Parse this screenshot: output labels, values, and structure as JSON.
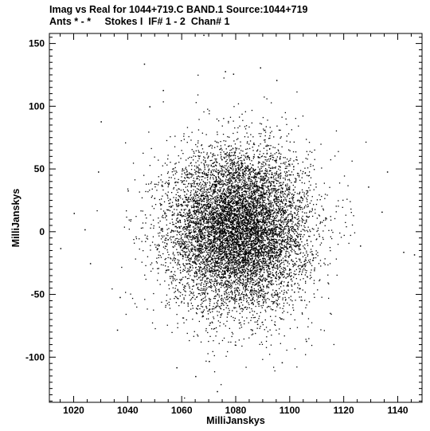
{
  "header": {
    "title_line1": "Imag vs Real for 1044+719.C BAND.1   Source:1044+719",
    "title_line2": "Ants * - *     Stokes I  IF# 1 - 2  Chan# 1"
  },
  "chart_data": {
    "type": "scatter",
    "title": "Imag vs Real for 1044+719.C BAND.1   Source:1044+719",
    "subtitle": "Ants * - *     Stokes I  IF# 1 - 2  Chan# 1",
    "xlabel": "MilliJanskys",
    "ylabel": "MilliJanskys",
    "xlim": [
      1011,
      1149
    ],
    "ylim": [
      -136,
      158
    ],
    "xticks": [
      1020,
      1040,
      1060,
      1080,
      1100,
      1120,
      1140
    ],
    "yticks": [
      -100,
      -50,
      0,
      50,
      100,
      150
    ],
    "grid": false,
    "distribution": {
      "center_x": 1081,
      "center_y": 2,
      "std_x": 13,
      "std_y": 32,
      "n_points": 9000
    },
    "points": [
      {
        "x": 1015,
        "y": -13
      },
      {
        "x": 1020,
        "y": 15
      },
      {
        "x": 1024,
        "y": 2
      },
      {
        "x": 1026,
        "y": -25
      },
      {
        "x": 1029,
        "y": 48
      },
      {
        "x": 1030,
        "y": 88
      },
      {
        "x": 1036,
        "y": -78
      },
      {
        "x": 1037,
        "y": -52
      },
      {
        "x": 1040,
        "y": 33
      },
      {
        "x": 1046,
        "y": 134
      },
      {
        "x": 1048,
        "y": 100
      },
      {
        "x": 1053,
        "y": 113
      },
      {
        "x": 1058,
        "y": -108
      },
      {
        "x": 1065,
        "y": -115
      },
      {
        "x": 1068,
        "y": 157
      },
      {
        "x": 1070,
        "y": -103
      },
      {
        "x": 1073,
        "y": -127
      },
      {
        "x": 1076,
        "y": 128
      },
      {
        "x": 1079,
        "y": 126
      },
      {
        "x": 1089,
        "y": 131
      },
      {
        "x": 1095,
        "y": 121
      },
      {
        "x": 1097,
        "y": -104
      },
      {
        "x": 1106,
        "y": -87
      },
      {
        "x": 1126,
        "y": -11
      },
      {
        "x": 1129,
        "y": 36
      },
      {
        "x": 1134,
        "y": 16
      },
      {
        "x": 1136,
        "y": 48
      },
      {
        "x": 1142,
        "y": -16
      },
      {
        "x": 1146,
        "y": -18
      }
    ]
  }
}
